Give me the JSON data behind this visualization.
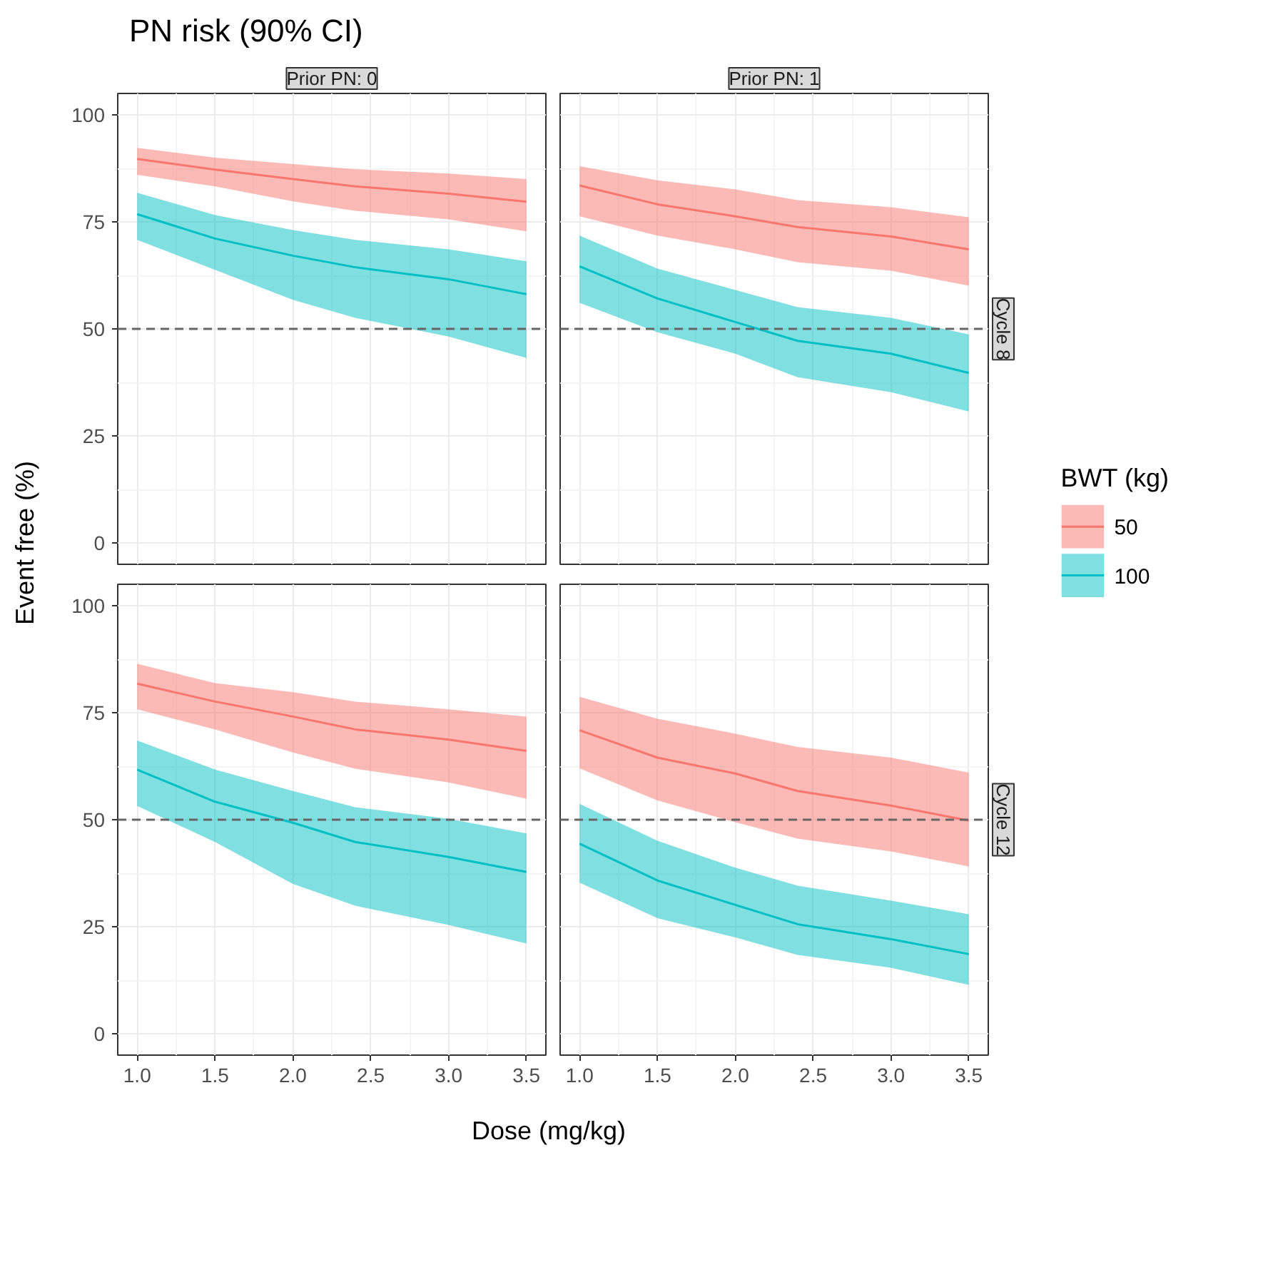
{
  "chart_data": [
    {
      "type": "line",
      "title": "PN risk (90% CI)",
      "subtitle": "Prior PN: 0",
      "legend": "right",
      "legend_title": "BWT (kg)",
      "x": [
        1.0,
        1.5,
        2.0,
        2.4,
        3.0,
        3.5
      ],
      "xlim": [
        0.875,
        3.625
      ],
      "ylim": [
        -5,
        105
      ],
      "xticks": [
        1,
        1.5,
        2,
        2.5,
        3,
        3.5
      ],
      "yticks": [
        0,
        25,
        50,
        75,
        100
      ],
      "tick_labels": "y",
      "grid": true,
      "marker": "none",
      "ref_lines": [
        {
          "axis": "y",
          "value": 50,
          "color": "#666666",
          "line_style": "dashed"
        }
      ],
      "series": [
        {
          "name": "50",
          "color": "#f8766d",
          "values": [
            89.7,
            87.2,
            85.0,
            83.3,
            81.6,
            79.7
          ],
          "lower": [
            86.0,
            83.3,
            79.8,
            77.6,
            75.6,
            72.8
          ],
          "upper": [
            92.3,
            90.0,
            88.5,
            87.3,
            86.3,
            85.0
          ]
        },
        {
          "name": "100",
          "color": "#00bfc4",
          "values": [
            76.8,
            71.1,
            67.1,
            64.4,
            61.6,
            58.1
          ],
          "lower": [
            70.8,
            63.8,
            56.8,
            52.6,
            48.2,
            43.2
          ],
          "upper": [
            81.8,
            76.6,
            73.1,
            70.8,
            68.6,
            65.8
          ]
        }
      ]
    },
    {
      "type": "line",
      "subtitle": "Prior PN: 1",
      "annotations": [
        "Cycle 8"
      ],
      "x": [
        1.0,
        1.5,
        2.0,
        2.4,
        3.0,
        3.5
      ],
      "xlim": [
        0.875,
        3.625
      ],
      "ylim": [
        -5,
        105
      ],
      "xticks": [
        1,
        1.5,
        2,
        2.5,
        3,
        3.5
      ],
      "yticks": [
        0,
        25,
        50,
        75,
        100
      ],
      "tick_labels": false,
      "grid": true,
      "marker": "none",
      "ref_lines": [
        {
          "axis": "y",
          "value": 50,
          "color": "#666666",
          "line_style": "dashed"
        }
      ],
      "series": [
        {
          "color": "#f8766d",
          "values": [
            83.5,
            79.1,
            76.3,
            73.8,
            71.6,
            68.6
          ],
          "lower": [
            76.3,
            71.8,
            68.6,
            65.6,
            63.6,
            60.1
          ],
          "upper": [
            88.0,
            84.7,
            82.6,
            80.1,
            78.4,
            76.1
          ]
        },
        {
          "color": "#00bfc4",
          "values": [
            64.6,
            57.1,
            51.6,
            47.2,
            44.2,
            39.7
          ],
          "lower": [
            56.1,
            49.2,
            44.2,
            38.7,
            35.2,
            30.7
          ],
          "upper": [
            71.8,
            64.1,
            59.1,
            55.1,
            52.6,
            48.7
          ]
        }
      ]
    },
    {
      "type": "line",
      "xlabel": "Dose (mg/kg)",
      "ylabel": "Event free (%)",
      "x": [
        1.0,
        1.5,
        2.0,
        2.4,
        3.0,
        3.5
      ],
      "xlim": [
        0.875,
        3.625
      ],
      "ylim": [
        -5,
        105
      ],
      "xticks": [
        {
          "value": 1,
          "label": "1.0"
        },
        {
          "value": 1.5,
          "label": "1.5"
        },
        {
          "value": 2,
          "label": "2.0"
        },
        {
          "value": 2.5,
          "label": "2.5"
        },
        {
          "value": 3,
          "label": "3.0"
        },
        {
          "value": 3.5,
          "label": "3.5"
        }
      ],
      "yticks": [
        0,
        25,
        50,
        75,
        100
      ],
      "grid": true,
      "marker": "none",
      "ref_lines": [
        {
          "axis": "y",
          "value": 50,
          "color": "#666666",
          "line_style": "dashed"
        }
      ],
      "series": [
        {
          "color": "#f8766d",
          "values": [
            81.8,
            77.6,
            74.1,
            71.1,
            68.7,
            66.1
          ],
          "lower": [
            75.8,
            71.1,
            65.7,
            61.9,
            58.7,
            54.9
          ],
          "upper": [
            86.4,
            81.9,
            79.8,
            77.6,
            75.8,
            74.1
          ]
        },
        {
          "color": "#00bfc4",
          "values": [
            61.7,
            54.2,
            49.3,
            44.8,
            41.3,
            37.8
          ],
          "lower": [
            53.2,
            44.8,
            35.0,
            29.9,
            25.4,
            21.1
          ],
          "upper": [
            68.5,
            61.7,
            56.7,
            52.9,
            50.2,
            46.8
          ]
        }
      ]
    },
    {
      "type": "line",
      "annotations": [
        "Cycle 12"
      ],
      "x": [
        1.0,
        1.5,
        2.0,
        2.4,
        3.0,
        3.5
      ],
      "xlim": [
        0.875,
        3.625
      ],
      "ylim": [
        -5,
        105
      ],
      "xticks": [
        {
          "value": 1,
          "label": "1.0"
        },
        {
          "value": 1.5,
          "label": "1.5"
        },
        {
          "value": 2,
          "label": "2.0"
        },
        {
          "value": 2.5,
          "label": "2.5"
        },
        {
          "value": 3,
          "label": "3.0"
        },
        {
          "value": 3.5,
          "label": "3.5"
        }
      ],
      "yticks": [
        0,
        25,
        50,
        75,
        100
      ],
      "tick_labels": "x",
      "grid": true,
      "marker": "none",
      "ref_lines": [
        {
          "axis": "y",
          "value": 50,
          "color": "#666666",
          "line_style": "dashed"
        }
      ],
      "series": [
        {
          "color": "#f8766d",
          "values": [
            70.9,
            64.5,
            60.8,
            56.7,
            53.3,
            49.8
          ],
          "lower": [
            62.0,
            54.5,
            49.4,
            45.6,
            42.6,
            39.1
          ],
          "upper": [
            78.7,
            73.6,
            70.1,
            67.0,
            64.5,
            61.0
          ]
        },
        {
          "color": "#00bfc4",
          "values": [
            44.4,
            35.8,
            30.1,
            25.6,
            22.1,
            18.6
          ],
          "lower": [
            35.3,
            27.0,
            22.5,
            18.4,
            15.4,
            11.4
          ],
          "upper": [
            53.7,
            45.1,
            38.8,
            34.6,
            31.1,
            27.9
          ]
        }
      ]
    }
  ]
}
